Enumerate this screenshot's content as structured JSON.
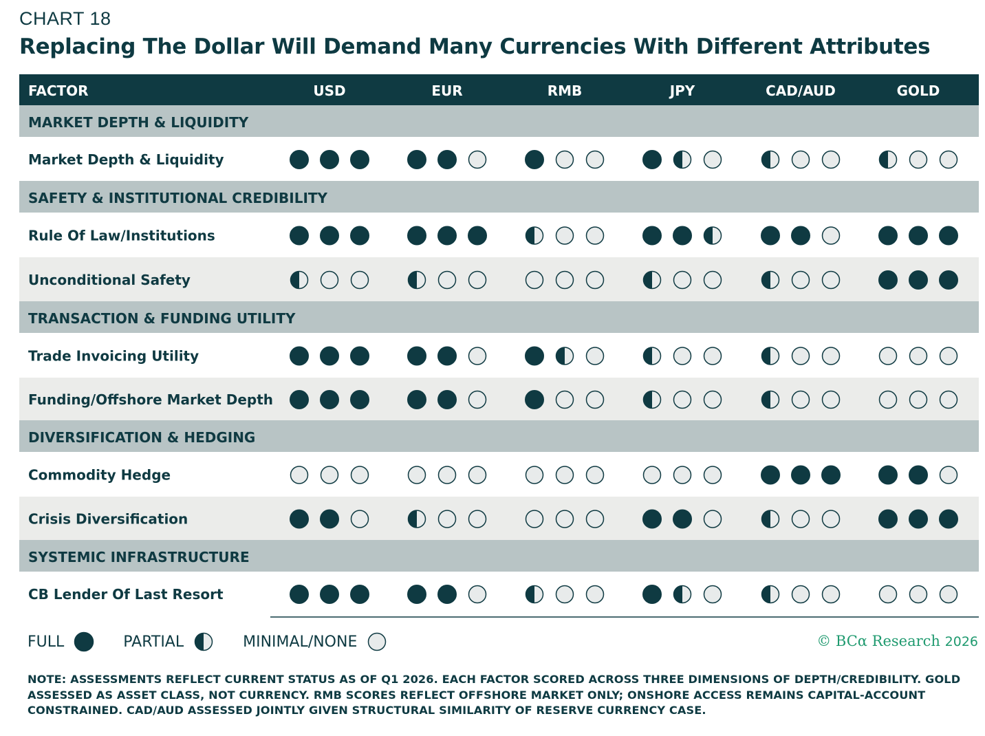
{
  "kicker": "CHART 18",
  "title": "Replacing The Dollar Will Demand Many Currencies With Different Attributes",
  "colors": {
    "header_bg": "#0f3a42",
    "header_text": "#ffffff",
    "section_bg": "#b8c4c5",
    "alt_row_bg": "#ebecea",
    "dot_full": "#0f3a42",
    "dot_empty_fill": "#e8ebeb",
    "credit": "#1f9a6f"
  },
  "chart_data": {
    "type": "table",
    "header": {
      "factor_label": "FACTOR",
      "columns": [
        "USD",
        "EUR",
        "RMB",
        "JPY",
        "CAD/AUD",
        "GOLD"
      ]
    },
    "scale": {
      "full": 1,
      "partial": 0.5,
      "minimal_none": 0
    },
    "rows": [
      {
        "kind": "section",
        "label": "MARKET DEPTH & LIQUIDITY"
      },
      {
        "kind": "factor",
        "label": "Market Depth & Liquidity",
        "shaded": false,
        "scores": [
          [
            1,
            1,
            1
          ],
          [
            1,
            1,
            0
          ],
          [
            1,
            0,
            0
          ],
          [
            1,
            0.5,
            0
          ],
          [
            0.5,
            0,
            0
          ],
          [
            0.5,
            0,
            0
          ]
        ]
      },
      {
        "kind": "section",
        "label": "SAFETY & INSTITUTIONAL CREDIBILITY"
      },
      {
        "kind": "factor",
        "label": "Rule Of Law/Institutions",
        "shaded": false,
        "scores": [
          [
            1,
            1,
            1
          ],
          [
            1,
            1,
            1
          ],
          [
            0.5,
            0,
            0
          ],
          [
            1,
            1,
            0.5
          ],
          [
            1,
            1,
            0
          ],
          [
            1,
            1,
            1
          ]
        ]
      },
      {
        "kind": "factor",
        "label": "Unconditional Safety",
        "shaded": true,
        "scores": [
          [
            0.5,
            0,
            0
          ],
          [
            0.5,
            0,
            0
          ],
          [
            0,
            0,
            0
          ],
          [
            0.5,
            0,
            0
          ],
          [
            0.5,
            0,
            0
          ],
          [
            1,
            1,
            1
          ]
        ]
      },
      {
        "kind": "section",
        "label": "TRANSACTION & FUNDING UTILITY"
      },
      {
        "kind": "factor",
        "label": "Trade Invoicing Utility",
        "shaded": false,
        "scores": [
          [
            1,
            1,
            1
          ],
          [
            1,
            1,
            0
          ],
          [
            1,
            0.5,
            0
          ],
          [
            0.5,
            0,
            0
          ],
          [
            0.5,
            0,
            0
          ],
          [
            0,
            0,
            0
          ]
        ]
      },
      {
        "kind": "factor",
        "label": "Funding/Offshore Market Depth",
        "shaded": true,
        "scores": [
          [
            1,
            1,
            1
          ],
          [
            1,
            1,
            0
          ],
          [
            1,
            0,
            0
          ],
          [
            0.5,
            0,
            0
          ],
          [
            0.5,
            0,
            0
          ],
          [
            0,
            0,
            0
          ]
        ]
      },
      {
        "kind": "section",
        "label": "DIVERSIFICATION & HEDGING"
      },
      {
        "kind": "factor",
        "label": "Commodity Hedge",
        "shaded": false,
        "scores": [
          [
            0,
            0,
            0
          ],
          [
            0,
            0,
            0
          ],
          [
            0,
            0,
            0
          ],
          [
            0,
            0,
            0
          ],
          [
            1,
            1,
            1
          ],
          [
            1,
            1,
            0
          ]
        ]
      },
      {
        "kind": "factor",
        "label": "Crisis Diversification",
        "shaded": true,
        "scores": [
          [
            1,
            1,
            0
          ],
          [
            0.5,
            0,
            0
          ],
          [
            0,
            0,
            0
          ],
          [
            1,
            1,
            0
          ],
          [
            0.5,
            0,
            0
          ],
          [
            1,
            1,
            1
          ]
        ]
      },
      {
        "kind": "section",
        "label": "SYSTEMIC INFRASTRUCTURE"
      },
      {
        "kind": "factor",
        "label": "CB Lender Of Last Resort",
        "shaded": false,
        "scores": [
          [
            1,
            1,
            1
          ],
          [
            1,
            1,
            0
          ],
          [
            0.5,
            0,
            0
          ],
          [
            1,
            0.5,
            0
          ],
          [
            0.5,
            0,
            0
          ],
          [
            0,
            0,
            0
          ]
        ]
      }
    ]
  },
  "legend": {
    "full": "FULL",
    "partial": "PARTIAL",
    "minimal": "MINIMAL/NONE"
  },
  "credit": {
    "text": "© BCα Research",
    "year": "2026"
  },
  "note": "NOTE: ASSESSMENTS REFLECT CURRENT STATUS AS OF Q1 2026. EACH FACTOR SCORED ACROSS THREE DIMENSIONS OF DEPTH/CREDIBILITY. GOLD ASSESSED AS ASSET CLASS, NOT CURRENCY. RMB SCORES REFLECT OFFSHORE MARKET ONLY; ONSHORE ACCESS REMAINS CAPITAL-ACCOUNT CONSTRAINED. CAD/AUD ASSESSED JOINTLY GIVEN STRUCTURAL SIMILARITY OF RESERVE CURRENCY CASE."
}
